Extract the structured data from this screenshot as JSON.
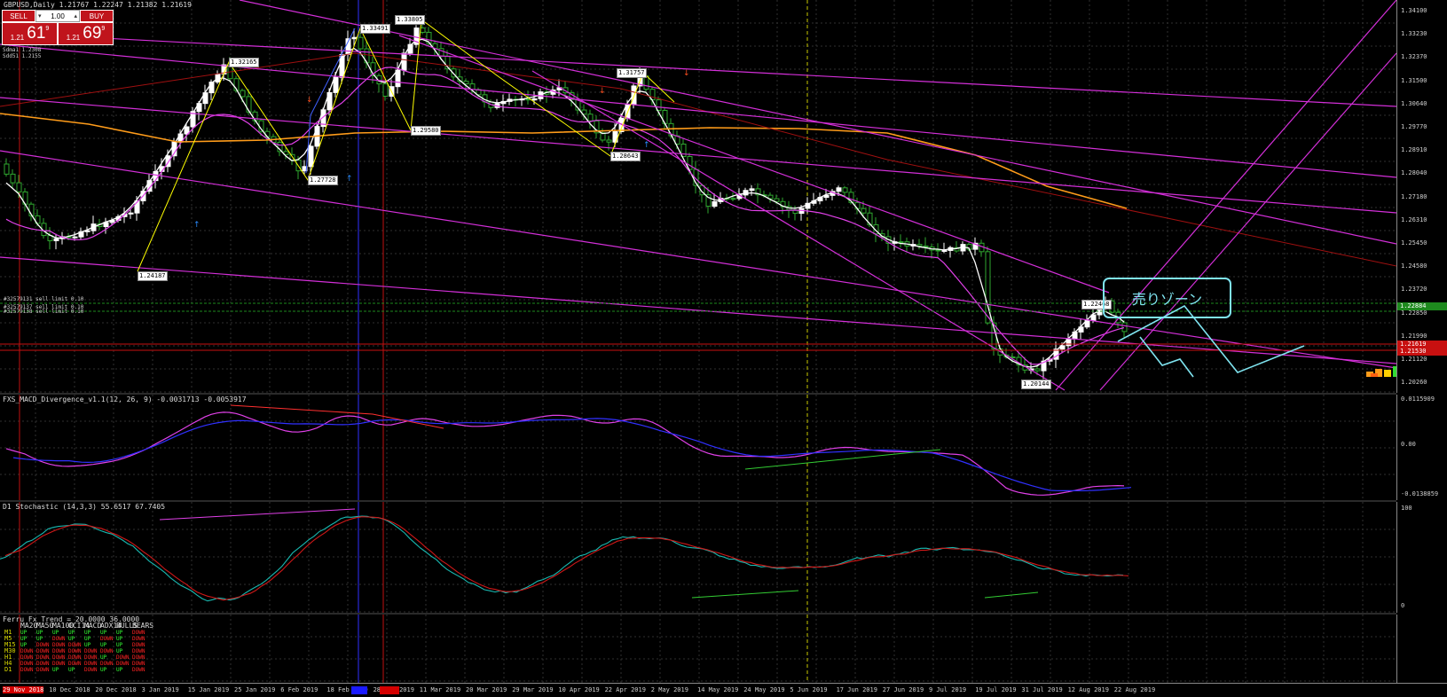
{
  "chart": {
    "title": "GBPUSD,Daily  1.21767 1.22247 1.21382 1.21619",
    "ma_info": [
      "Sdma1 1.2308",
      "Sdd51 1.2155"
    ],
    "order_lines": [
      "#32579131 sell limit 0.10",
      "#32579137 sell limit 0.10",
      "#32579138 sell limit 0.10"
    ],
    "sell_zone_label": "売りゾーン",
    "swing_labels": [
      "1.24187",
      "1.32165",
      "1.27728",
      "1.33491",
      "1.29580",
      "1.33805",
      "1.31757",
      "1.28643",
      "1.22468",
      "1.20144"
    ],
    "price_axis": [
      "1.34100",
      "1.33230",
      "1.32370",
      "1.31500",
      "1.30640",
      "1.29770",
      "1.28910",
      "1.28040",
      "1.27180",
      "1.26310",
      "1.25450",
      "1.24580",
      "1.23720",
      "1.22850",
      "1.21990",
      "1.21120",
      "1.20260"
    ],
    "price_badges": [
      {
        "label": "1.22884",
        "color": "#1e8a1e"
      },
      {
        "label": "1.21619",
        "color": "#c81010"
      },
      {
        "label": "1.21530",
        "color": "#c81010"
      }
    ],
    "colors": {
      "bull": "#ffffff",
      "bear": "#2fa82f",
      "ma_white": "#ffffff",
      "ma_orange": "#ff9c1a",
      "channel": "#d32fd8",
      "zigzag": "#ffff00",
      "sell_zone": "#7fe4f0"
    }
  },
  "trade_panel": {
    "sell_label": "SELL",
    "buy_label": "BUY",
    "lot": "1.00",
    "sell_prefix": "1.21",
    "sell_big": "61",
    "sell_sup": "9",
    "buy_prefix": "1.21",
    "buy_big": "69",
    "buy_sup": "9"
  },
  "macd": {
    "label": "FXS_MACD_Divergence_v1.1(12, 26, 9) -0.0031713 -0.0053917",
    "axis_top": "0.0115909",
    "axis_zero": "0.00",
    "axis_bottom": "-0.0138859"
  },
  "stochastic": {
    "label": "D1 Stochastic (14,3,3) 55.6517 67.7405",
    "axis_top": "100",
    "axis_bottom": "0"
  },
  "trend": {
    "label": "Ferru Fx_Trend = 20.0000 36.0000",
    "headers": [
      "MA20",
      "MA50",
      "MA100",
      "CCI14",
      "MACD",
      "ADX14",
      "BULLS",
      "BEARS"
    ],
    "rows": [
      {
        "tf": "M1",
        "cells": [
          "UP",
          "UP",
          "UP",
          "UP",
          "UP",
          "UP",
          "UP",
          "DOWN"
        ]
      },
      {
        "tf": "M5",
        "cells": [
          "UP",
          "UP",
          "DOWN",
          "UP",
          "UP",
          "DOWN",
          "UP",
          "DOWN"
        ]
      },
      {
        "tf": "M15",
        "cells": [
          "UP",
          "DOWN",
          "DOWN",
          "DOWN",
          "UP",
          "UP",
          "UP",
          "DOWN"
        ]
      },
      {
        "tf": "M30",
        "cells": [
          "DOWN",
          "DOWN",
          "DOWN",
          "DOWN",
          "DOWN",
          "DOWN",
          "UP",
          "DOWN"
        ]
      },
      {
        "tf": "H1",
        "cells": [
          "DOWN",
          "DOWN",
          "DOWN",
          "DOWN",
          "DOWN",
          "UP",
          "DOWN",
          "DOWN"
        ]
      },
      {
        "tf": "H4",
        "cells": [
          "DOWN",
          "DOWN",
          "DOWN",
          "DOWN",
          "DOWN",
          "DOWN",
          "DOWN",
          "DOWN"
        ]
      },
      {
        "tf": "D1",
        "cells": [
          "DOWN",
          "DOWN",
          "UP",
          "UP",
          "DOWN",
          "UP",
          "UP",
          "DOWN"
        ]
      }
    ]
  },
  "time_axis": [
    "29 Nov 2018",
    "10 Dec 2018",
    "20 Dec 2018",
    "3 Jan 2019",
    "15 Jan 2019",
    "25 Jan 2019",
    "6 Feb 2019",
    "18 Feb 2019",
    "28 Feb 2019",
    "11 Mar 2019",
    "20 Mar 2019",
    "29 Mar 2019",
    "10 Apr 2019",
    "22 Apr 2019",
    "2 May 2019",
    "14 May 2019",
    "24 May 2019",
    "5 Jun 2019",
    "17 Jun 2019",
    "27 Jun 2019",
    "9 Jul 2019",
    "19 Jul 2019",
    "31 Jul 2019",
    "12 Aug 2019",
    "22 Aug 2019"
  ]
}
